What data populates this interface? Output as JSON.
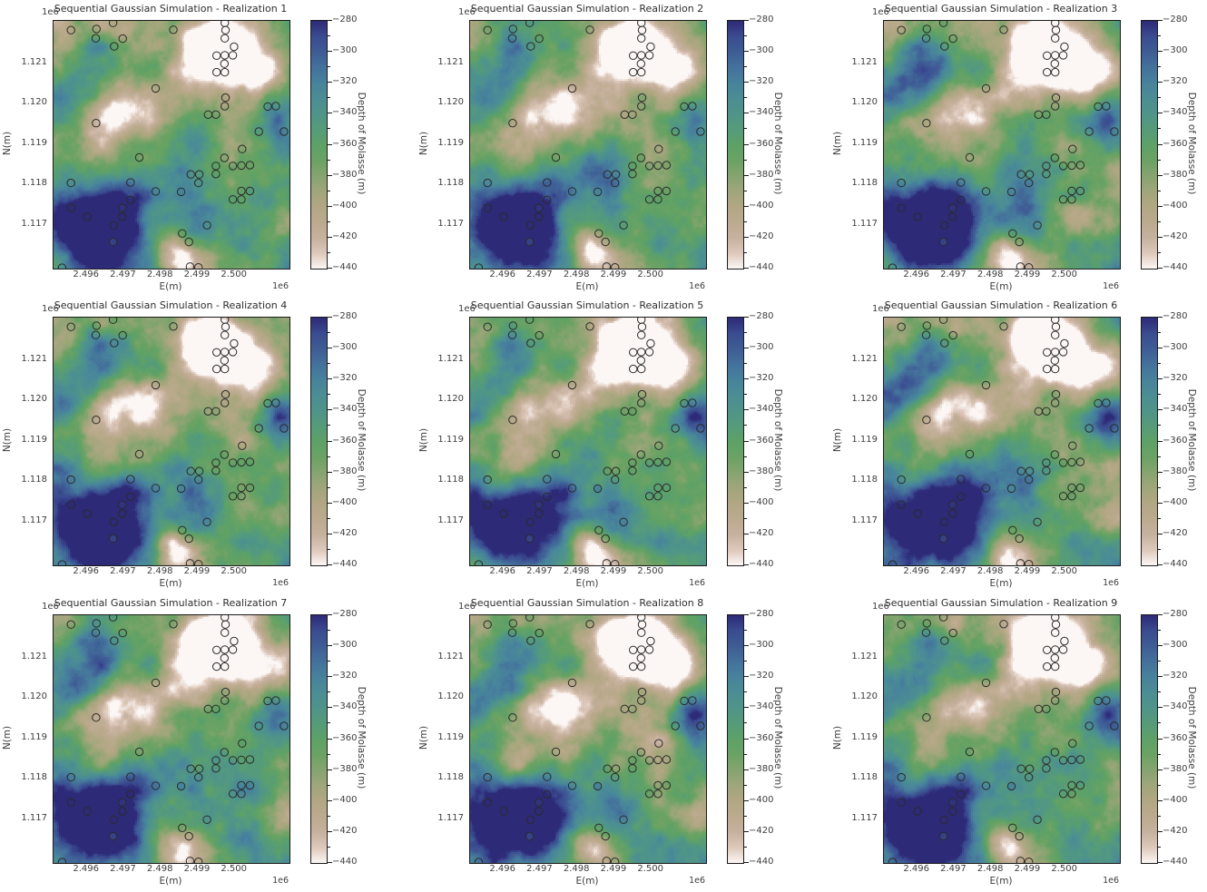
{
  "figure": {
    "background": "#ffffff",
    "text_color": "#3d3d3d",
    "spine_color": "#1b1b1b",
    "marker_edge_color": "#2a2a2a"
  },
  "chart_data": {
    "type": "heatmap",
    "layout": {
      "rows": 3,
      "cols": 3,
      "legend_position": "right-colorbar",
      "grid": false
    },
    "panels": [
      {
        "realization": 1,
        "title": "Sequential Gaussian Simulation - Realization 1"
      },
      {
        "realization": 2,
        "title": "Sequential Gaussian Simulation - Realization 2"
      },
      {
        "realization": 3,
        "title": "Sequential Gaussian Simulation - Realization 3"
      },
      {
        "realization": 4,
        "title": "Sequential Gaussian Simulation - Realization 4"
      },
      {
        "realization": 5,
        "title": "Sequential Gaussian Simulation - Realization 5"
      },
      {
        "realization": 6,
        "title": "Sequential Gaussian Simulation - Realization 6"
      },
      {
        "realization": 7,
        "title": "Sequential Gaussian Simulation - Realization 7"
      },
      {
        "realization": 8,
        "title": "Sequential Gaussian Simulation - Realization 8"
      },
      {
        "realization": 9,
        "title": "Sequential Gaussian Simulation - Realization 9"
      }
    ],
    "shared": {
      "xlabel": "E(m)",
      "ylabel": "N(m)",
      "x_offset_label": "1e6",
      "y_offset_label": "1e6",
      "x_ticks": [
        "2.496",
        "2.497",
        "2.498",
        "2.499",
        "2.500"
      ],
      "y_ticks": [
        "1.121",
        "1.120",
        "1.119",
        "1.118",
        "1.117"
      ],
      "x_range_m": [
        2495100,
        2501480
      ],
      "y_range_m": [
        1115920,
        1122050
      ],
      "colorbar": {
        "label": "Depth of Molasse (m)",
        "vmin": -440,
        "vmax": -280,
        "ticks": [
          "−280",
          "−300",
          "−320",
          "−340",
          "−360",
          "−380",
          "−400",
          "−420",
          "−440"
        ],
        "minor_tick_step_m": 10,
        "gradient_stops": [
          {
            "depth": -280,
            "color": "#2d2a78"
          },
          {
            "depth": -290,
            "color": "#3a4b90"
          },
          {
            "depth": -300,
            "color": "#3e5c95"
          },
          {
            "depth": -310,
            "color": "#44719b"
          },
          {
            "depth": -320,
            "color": "#47829c"
          },
          {
            "depth": -330,
            "color": "#4b8d94"
          },
          {
            "depth": -340,
            "color": "#4f9489"
          },
          {
            "depth": -350,
            "color": "#559b7a"
          },
          {
            "depth": -360,
            "color": "#5da167"
          },
          {
            "depth": -370,
            "color": "#6aa263"
          },
          {
            "depth": -380,
            "color": "#85a46f"
          },
          {
            "depth": -390,
            "color": "#a0a67a"
          },
          {
            "depth": -400,
            "color": "#b1a783"
          },
          {
            "depth": -410,
            "color": "#bcaa8e"
          },
          {
            "depth": -420,
            "color": "#c6b19e"
          },
          {
            "depth": -430,
            "color": "#ddc8ba"
          },
          {
            "depth": -440,
            "color": "#fcf7f5"
          }
        ]
      },
      "wells": {
        "format": [
          "E_m",
          "N_m",
          "depth_m_or_null"
        ],
        "points": [
          [
            2495570,
            1121820,
            null
          ],
          [
            2496260,
            1121850,
            null
          ],
          [
            2496240,
            1121620,
            null
          ],
          [
            2496710,
            1122000,
            null
          ],
          [
            2496970,
            1121610,
            null
          ],
          [
            2496740,
            1121420,
            null
          ],
          [
            2498340,
            1121830,
            null
          ],
          [
            2499730,
            1122000,
            null
          ],
          [
            2499750,
            1121820,
            null
          ],
          [
            2499730,
            1121620,
            null
          ],
          [
            2499980,
            1121410,
            null
          ],
          [
            2499510,
            1121190,
            null
          ],
          [
            2499730,
            1121200,
            null
          ],
          [
            2499950,
            1121200,
            null
          ],
          [
            2499720,
            1120990,
            null
          ],
          [
            2499510,
            1120780,
            null
          ],
          [
            2499730,
            1120780,
            null
          ],
          [
            2497860,
            1120380,
            null
          ],
          [
            2499750,
            1120150,
            null
          ],
          [
            2499730,
            1119940,
            null
          ],
          [
            2500890,
            1119930,
            null
          ],
          [
            2501110,
            1119940,
            null
          ],
          [
            2499280,
            1119730,
            null
          ],
          [
            2499490,
            1119730,
            null
          ],
          [
            2496250,
            1119520,
            null
          ],
          [
            2500650,
            1119310,
            null
          ],
          [
            2501330,
            1119310,
            null
          ],
          [
            2497420,
            1118670,
            null
          ],
          [
            2500200,
            1118880,
            null
          ],
          [
            2499720,
            1118660,
            null
          ],
          [
            2499490,
            1118460,
            null
          ],
          [
            2499950,
            1118460,
            null
          ],
          [
            2500180,
            1118470,
            null
          ],
          [
            2500410,
            1118480,
            null
          ],
          [
            2498810,
            1118250,
            null
          ],
          [
            2499040,
            1118250,
            null
          ],
          [
            2499490,
            1118260,
            null
          ],
          [
            2499020,
            1118040,
            null
          ],
          [
            2495570,
            1118040,
            null
          ],
          [
            2497180,
            1118050,
            null
          ],
          [
            2497860,
            1117830,
            null
          ],
          [
            2498550,
            1117820,
            -322
          ],
          [
            2500180,
            1117840,
            null
          ],
          [
            2500410,
            1117840,
            null
          ],
          [
            2499950,
            1117630,
            null
          ],
          [
            2500180,
            1117630,
            null
          ],
          [
            2497180,
            1117620,
            null
          ],
          [
            2495570,
            1117420,
            null
          ],
          [
            2496960,
            1117420,
            -283
          ],
          [
            2496010,
            1117200,
            null
          ],
          [
            2496960,
            1117200,
            null
          ],
          [
            2496730,
            1116990,
            null
          ],
          [
            2499250,
            1116990,
            null
          ],
          [
            2498580,
            1116790,
            null
          ],
          [
            2498760,
            1116580,
            null
          ],
          [
            2496710,
            1116580,
            -287
          ],
          [
            2495330,
            1115940,
            null
          ],
          [
            2498790,
            1115970,
            null
          ],
          [
            2499020,
            1115950,
            null
          ]
        ]
      }
    }
  }
}
